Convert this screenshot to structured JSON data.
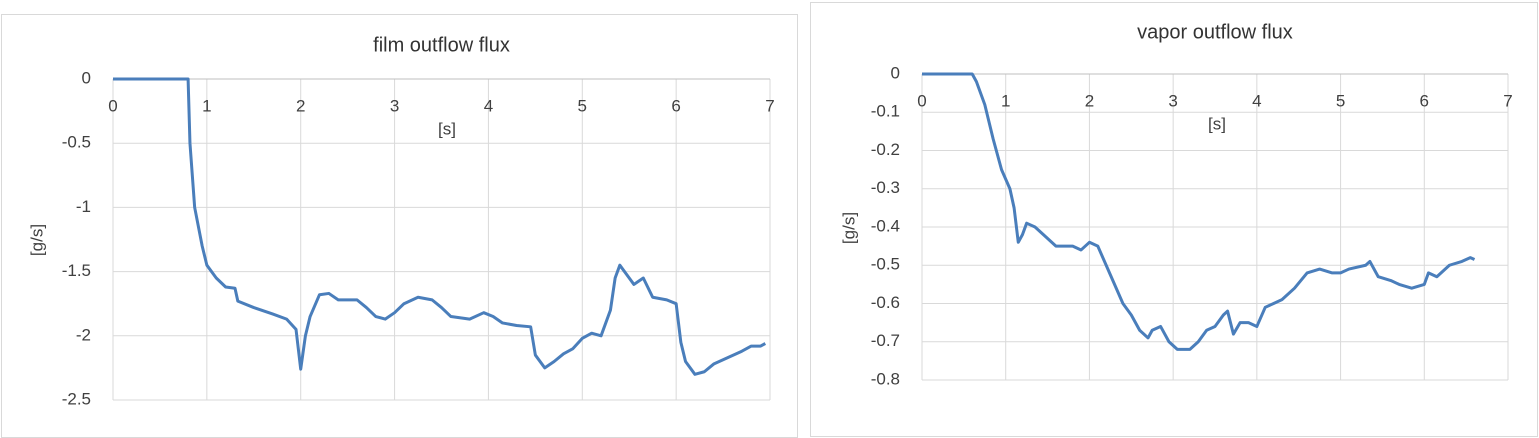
{
  "chart_data": [
    {
      "type": "line",
      "title": "film outflow flux",
      "xlabel": "[s]",
      "ylabel": "[g/s]",
      "x": [
        0,
        0.8,
        0.82,
        0.87,
        0.95,
        1.0,
        1.1,
        1.2,
        1.3,
        1.33,
        1.5,
        1.7,
        1.85,
        1.95,
        2.0,
        2.05,
        2.1,
        2.2,
        2.3,
        2.4,
        2.6,
        2.7,
        2.8,
        2.9,
        3.0,
        3.1,
        3.25,
        3.4,
        3.5,
        3.6,
        3.8,
        3.95,
        4.05,
        4.15,
        4.3,
        4.45,
        4.5,
        4.6,
        4.7,
        4.8,
        4.9,
        5.0,
        5.1,
        5.2,
        5.3,
        5.35,
        5.4,
        5.5,
        5.55,
        5.65,
        5.75,
        5.9,
        6.0,
        6.05,
        6.1,
        6.2,
        6.3,
        6.4,
        6.55,
        6.7,
        6.8,
        6.9,
        6.95
      ],
      "series": [
        {
          "color": "#4a7ebb",
          "values": [
            0,
            0,
            -0.5,
            -1.0,
            -1.3,
            -1.45,
            -1.55,
            -1.62,
            -1.63,
            -1.73,
            -1.78,
            -1.83,
            -1.87,
            -1.95,
            -2.26,
            -2.0,
            -1.85,
            -1.68,
            -1.67,
            -1.72,
            -1.72,
            -1.78,
            -1.85,
            -1.87,
            -1.82,
            -1.75,
            -1.7,
            -1.72,
            -1.78,
            -1.85,
            -1.87,
            -1.82,
            -1.85,
            -1.9,
            -1.92,
            -1.93,
            -2.15,
            -2.25,
            -2.2,
            -2.14,
            -2.1,
            -2.02,
            -1.98,
            -2.0,
            -1.8,
            -1.55,
            -1.45,
            -1.55,
            -1.6,
            -1.55,
            -1.7,
            -1.72,
            -1.75,
            -2.05,
            -2.2,
            -2.3,
            -2.28,
            -2.22,
            -2.17,
            -2.12,
            -2.08,
            -2.08,
            -2.06
          ]
        }
      ],
      "xlim": [
        0,
        7
      ],
      "ylim": [
        -2.5,
        0
      ],
      "xticks": [
        0,
        1,
        2,
        3,
        4,
        5,
        6,
        7
      ],
      "yticks": [
        0,
        -0.5,
        -1,
        -1.5,
        -2,
        -2.5
      ],
      "grid": true
    },
    {
      "type": "line",
      "title": "vapor outflow flux",
      "xlabel": "[s]",
      "ylabel": "[g/s]",
      "x": [
        0,
        0.6,
        0.65,
        0.75,
        0.85,
        0.95,
        1.05,
        1.1,
        1.15,
        1.2,
        1.25,
        1.35,
        1.45,
        1.6,
        1.7,
        1.8,
        1.9,
        2.0,
        2.1,
        2.2,
        2.3,
        2.4,
        2.5,
        2.6,
        2.7,
        2.75,
        2.85,
        2.95,
        3.05,
        3.2,
        3.3,
        3.4,
        3.5,
        3.6,
        3.65,
        3.72,
        3.8,
        3.9,
        4.0,
        4.1,
        4.2,
        4.3,
        4.45,
        4.6,
        4.75,
        4.9,
        5.0,
        5.1,
        5.3,
        5.35,
        5.45,
        5.6,
        5.7,
        5.85,
        6.0,
        6.05,
        6.15,
        6.3,
        6.45,
        6.55,
        6.6
      ],
      "series": [
        {
          "color": "#4a7ebb",
          "values": [
            0,
            0,
            -0.02,
            -0.08,
            -0.17,
            -0.25,
            -0.3,
            -0.35,
            -0.44,
            -0.42,
            -0.39,
            -0.4,
            -0.42,
            -0.45,
            -0.45,
            -0.45,
            -0.46,
            -0.44,
            -0.45,
            -0.5,
            -0.55,
            -0.6,
            -0.63,
            -0.67,
            -0.69,
            -0.67,
            -0.66,
            -0.7,
            -0.72,
            -0.72,
            -0.7,
            -0.67,
            -0.66,
            -0.63,
            -0.62,
            -0.68,
            -0.65,
            -0.65,
            -0.66,
            -0.61,
            -0.6,
            -0.59,
            -0.56,
            -0.52,
            -0.51,
            -0.52,
            -0.52,
            -0.51,
            -0.5,
            -0.49,
            -0.53,
            -0.54,
            -0.55,
            -0.56,
            -0.55,
            -0.52,
            -0.53,
            -0.5,
            -0.49,
            -0.48,
            -0.485
          ]
        }
      ],
      "xlim": [
        0,
        7
      ],
      "ylim": [
        -0.8,
        0
      ],
      "xticks": [
        0,
        1,
        2,
        3,
        4,
        5,
        6,
        7
      ],
      "yticks": [
        0,
        -0.1,
        -0.2,
        -0.3,
        -0.4,
        -0.5,
        -0.6,
        -0.7,
        -0.8
      ],
      "grid": true
    }
  ]
}
